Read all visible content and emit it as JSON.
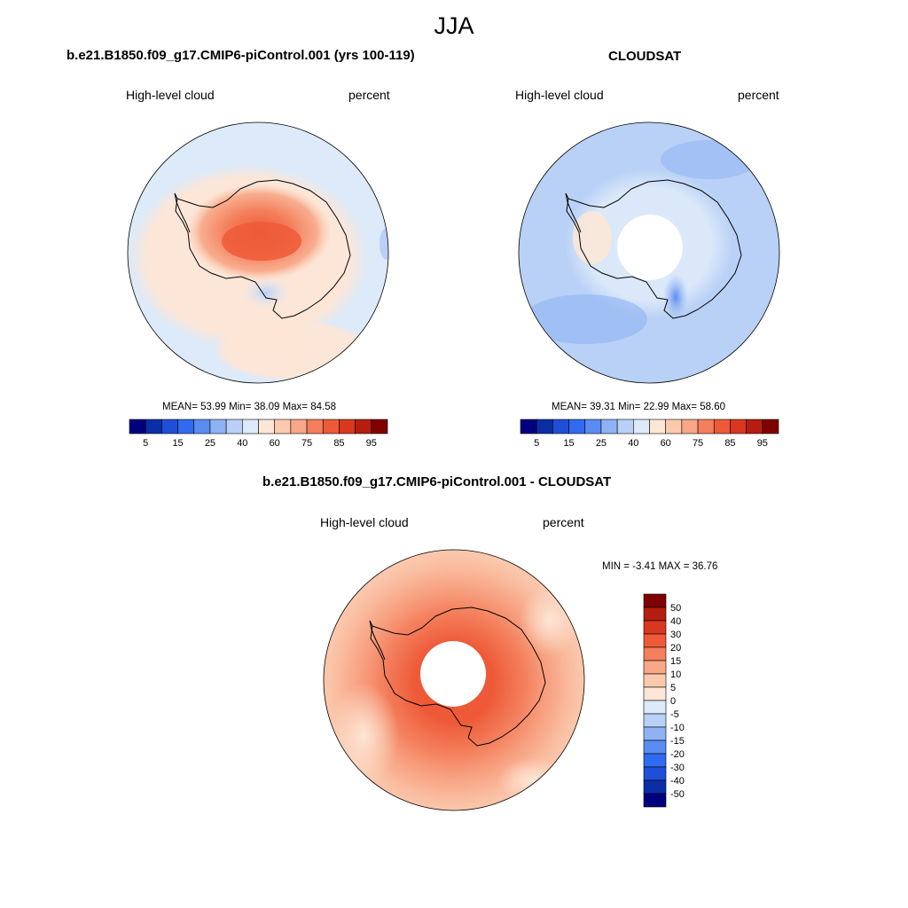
{
  "figure": {
    "season_title": "JJA"
  },
  "panels": [
    {
      "title": "b.e21.B1850.f09_g17.CMIP6-piControl.001 (yrs 100-119)",
      "left_label": "High-level cloud",
      "right_label": "percent",
      "stats": {
        "mean_label": "MEAN=",
        "mean_value": "53.99",
        "min_label": "Min=",
        "min_value": "38.09",
        "max_label": "Max=",
        "max_value": "84.58"
      }
    },
    {
      "title": "CLOUDSAT",
      "left_label": "High-level cloud",
      "right_label": "percent",
      "stats": {
        "mean_label": "MEAN=",
        "mean_value": "39.31",
        "min_label": "Min=",
        "min_value": "22.99",
        "max_label": "Max=",
        "max_value": "58.60"
      }
    },
    {
      "title": "b.e21.B1850.f09_g17.CMIP6-piControl.001 - CLOUDSAT",
      "left_label": "High-level cloud",
      "right_label": "percent",
      "stats": {
        "minmax_text": "MIN =  -3.41 MAX =  36.76"
      }
    }
  ],
  "colors": {
    "abs_scale": [
      "#00007f",
      "#0b2ea6",
      "#1f4fd8",
      "#2f6bf0",
      "#5a8cf2",
      "#8fb2f4",
      "#b9d1f6",
      "#ddeaf9",
      "#fde6d6",
      "#fbc9ae",
      "#f8a787",
      "#f47f5c",
      "#ee5a38",
      "#d9381e",
      "#b51d10",
      "#7f0000"
    ],
    "diff_scale": [
      "#7f0000",
      "#b51d10",
      "#d9381e",
      "#ee5a38",
      "#f47f5c",
      "#f8a787",
      "#fbc9ae",
      "#fde6d6",
      "#ddeaf9",
      "#b9d1f6",
      "#8fb2f4",
      "#5a8cf2",
      "#2f6bf0",
      "#1f4fd8",
      "#0b2ea6",
      "#00007f"
    ]
  },
  "chart_data": [
    {
      "type": "heatmap",
      "title": "b.e21.B1850.f09_g17.CMIP6-piControl.001 (yrs 100-119)",
      "variable": "High-level cloud",
      "units": "percent",
      "projection": "south polar stereographic",
      "colorbar": {
        "orientation": "horizontal",
        "tick_labels": [
          "5",
          "15",
          "25",
          "40",
          "60",
          "75",
          "85",
          "95"
        ]
      },
      "mean": 53.99,
      "min": 38.09,
      "max": 84.58
    },
    {
      "type": "heatmap",
      "title": "CLOUDSAT",
      "variable": "High-level cloud",
      "units": "percent",
      "projection": "south polar stereographic",
      "colorbar": {
        "orientation": "horizontal",
        "tick_labels": [
          "5",
          "15",
          "25",
          "40",
          "60",
          "75",
          "85",
          "95"
        ]
      },
      "mean": 39.31,
      "min": 22.99,
      "max": 58.6
    },
    {
      "type": "heatmap",
      "title": "b.e21.B1850.f09_g17.CMIP6-piControl.001 - CLOUDSAT",
      "variable": "High-level cloud",
      "units": "percent",
      "projection": "south polar stereographic",
      "colorbar": {
        "orientation": "vertical",
        "tick_labels": [
          "50",
          "40",
          "30",
          "20",
          "15",
          "10",
          "5",
          "0",
          "-5",
          "-10",
          "-15",
          "-20",
          "-30",
          "-40",
          "-50"
        ]
      },
      "min": -3.41,
      "max": 36.76
    }
  ]
}
